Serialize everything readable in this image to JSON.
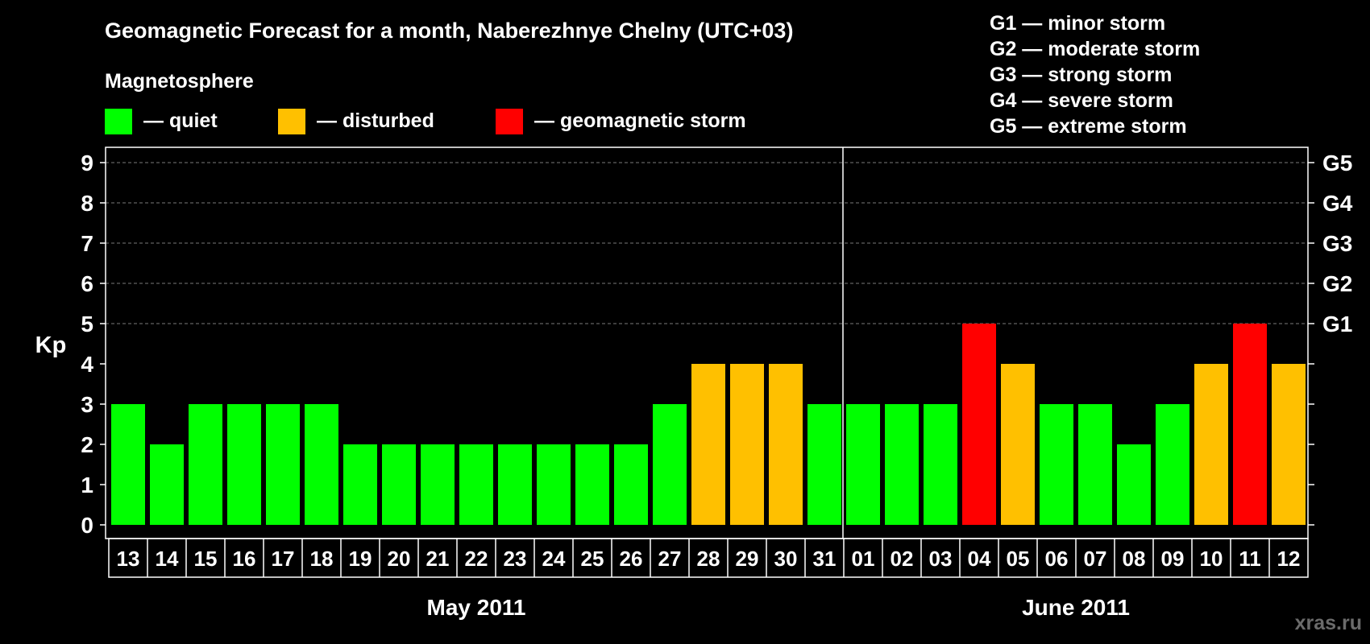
{
  "chart_data": {
    "type": "bar",
    "title": "Geomagnetic Forecast for a month, Naberezhnye Chelny (UTC+03)",
    "ylabel": "Kp",
    "ylim": [
      0,
      9
    ],
    "yticks": [
      "0",
      "1",
      "2",
      "3",
      "4",
      "5",
      "6",
      "7",
      "8",
      "9"
    ],
    "grid": "dashed horizontal lines at Kp 5-9",
    "right_axis": [
      {
        "kp": 5,
        "label": "G1"
      },
      {
        "kp": 6,
        "label": "G2"
      },
      {
        "kp": 7,
        "label": "G3"
      },
      {
        "kp": 8,
        "label": "G4"
      },
      {
        "kp": 9,
        "label": "G5"
      }
    ],
    "legend_title": "Magnetosphere",
    "legend": [
      {
        "key": "quiet",
        "label": "— quiet",
        "color": "#00ff00"
      },
      {
        "key": "disturbed",
        "label": "— disturbed",
        "color": "#ffc000"
      },
      {
        "key": "storm",
        "label": "— geomagnetic storm",
        "color": "#ff0000"
      }
    ],
    "storm_scale": [
      "G1 — minor storm",
      "G2 — moderate storm",
      "G3 — strong storm",
      "G4 — severe storm",
      "G5 — extreme storm"
    ],
    "months": [
      {
        "label": "May 2011",
        "start": 0,
        "count": 19
      },
      {
        "label": "June 2011",
        "start": 19,
        "count": 12
      }
    ],
    "categories": [
      "13",
      "14",
      "15",
      "16",
      "17",
      "18",
      "19",
      "20",
      "21",
      "22",
      "23",
      "24",
      "25",
      "26",
      "27",
      "28",
      "29",
      "30",
      "31",
      "01",
      "02",
      "03",
      "04",
      "05",
      "06",
      "07",
      "08",
      "09",
      "10",
      "11",
      "12"
    ],
    "values": [
      3,
      2,
      3,
      3,
      3,
      3,
      2,
      2,
      2,
      2,
      2,
      2,
      2,
      2,
      3,
      4,
      4,
      4,
      3,
      3,
      3,
      3,
      5,
      4,
      3,
      3,
      2,
      3,
      4,
      5,
      4
    ],
    "status": [
      "quiet",
      "quiet",
      "quiet",
      "quiet",
      "quiet",
      "quiet",
      "quiet",
      "quiet",
      "quiet",
      "quiet",
      "quiet",
      "quiet",
      "quiet",
      "quiet",
      "quiet",
      "disturbed",
      "disturbed",
      "disturbed",
      "quiet",
      "quiet",
      "quiet",
      "quiet",
      "storm",
      "disturbed",
      "quiet",
      "quiet",
      "quiet",
      "quiet",
      "disturbed",
      "storm",
      "disturbed"
    ]
  },
  "watermark": "xras.ru"
}
